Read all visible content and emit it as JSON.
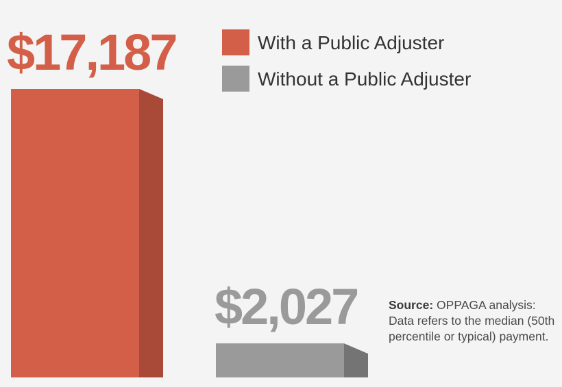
{
  "chart_data": {
    "type": "bar",
    "title": "",
    "xlabel": "",
    "ylabel": "",
    "ylim": [
      0,
      17187
    ],
    "grid": false,
    "legend": "top-right",
    "categories": [
      "With a Public Adjuster",
      "Without a Public Adjuster"
    ],
    "values": [
      17187,
      2027
    ],
    "value_labels": [
      "$17,187",
      "$2,027"
    ],
    "colors": [
      "#d35f48",
      "#9a9a9a"
    ],
    "side_colors": [
      "#a84a37",
      "#747474"
    ]
  },
  "legend": {
    "items": [
      {
        "label": "With a Public Adjuster",
        "color": "#d35f48"
      },
      {
        "label": "Without a Public Adjuster",
        "color": "#9a9a9a"
      }
    ]
  },
  "note": {
    "source_label": "Source:",
    "source_text": "OPPAGA analysis:",
    "body": "Data refers to the median (50th percentile or typical) payment."
  },
  "icons": {
    "legend_swatch": "square-swatch-icon"
  }
}
